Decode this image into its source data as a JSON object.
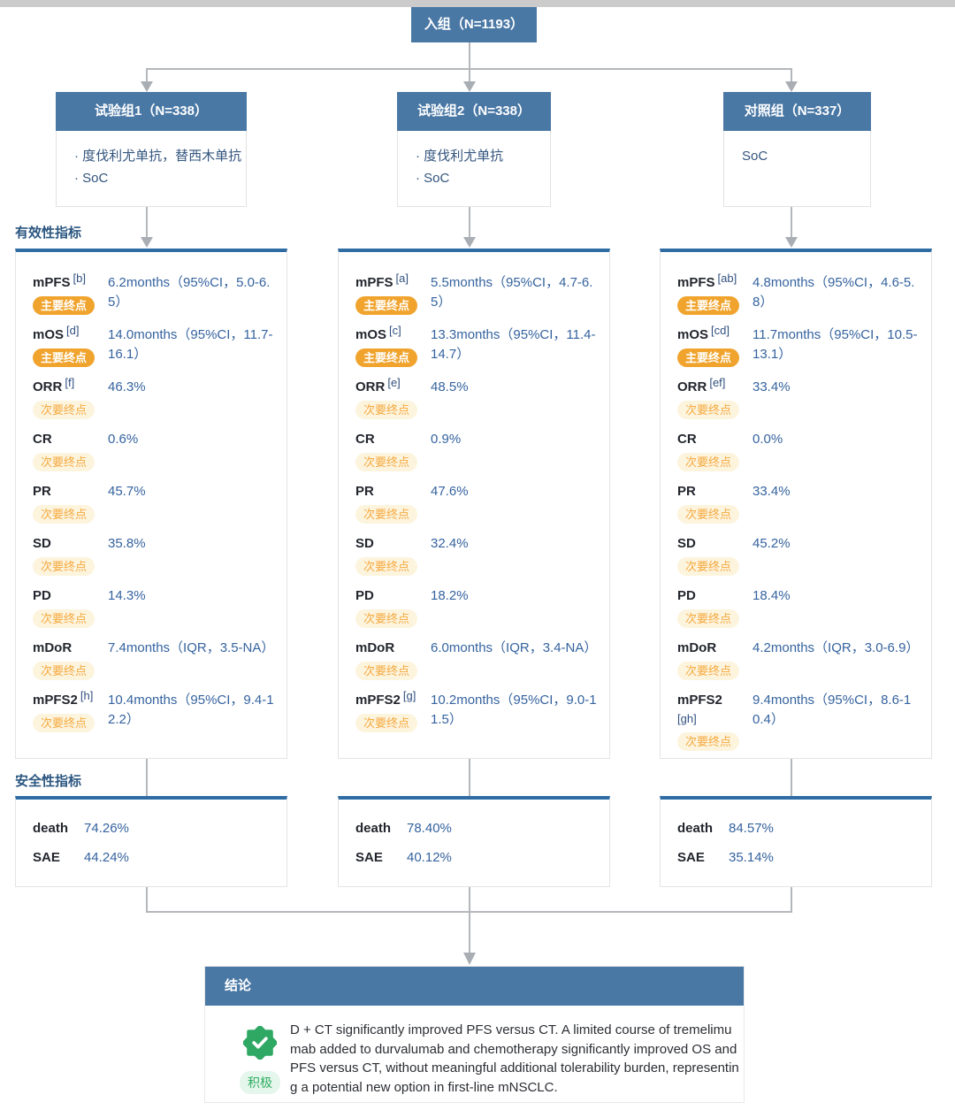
{
  "colors": {
    "blue": "#4a78a5",
    "panelblue": "#2e6ca3",
    "orange": "#f0a42e",
    "orangetext": "#f5a93f",
    "cream": "#fdf4de",
    "valblue": "#35639f",
    "green": "#2fae63",
    "greenbg": "#e5f6ec",
    "line": "#b4b7bb",
    "arrow": "#a9aeb4"
  },
  "enroll": {
    "label": "入组（N=1193）"
  },
  "arms": [
    {
      "header": "试验组1（N=338）",
      "bulleted": true,
      "items": [
        "度伐利尤单抗，替西木单抗",
        "SoC"
      ]
    },
    {
      "header": "试验组2（N=338）",
      "bulleted": true,
      "items": [
        "度伐利尤单抗",
        "SoC"
      ]
    },
    {
      "header": "对照组（N=337）",
      "bulleted": false,
      "items": [
        "SoC"
      ]
    }
  ],
  "sections": {
    "efficacy": "有效性指标",
    "safety": "安全性指标"
  },
  "badges": {
    "primary": "主要终点",
    "secondary": "次要终点"
  },
  "efficacy": {
    "columns": [
      {
        "rows": [
          {
            "metric": "mPFS",
            "sup": "[b]",
            "badge": "primary",
            "value": "6.2months（95%CI，5.0-6.5）"
          },
          {
            "metric": "mOS",
            "sup": "[d]",
            "badge": "primary",
            "value": "14.0months（95%CI，11.7-16.1）"
          },
          {
            "metric": "ORR",
            "sup": "[f]",
            "badge": "secondary",
            "value": "46.3%"
          },
          {
            "metric": "CR",
            "sup": "",
            "badge": "secondary",
            "value": "0.6%"
          },
          {
            "metric": "PR",
            "sup": "",
            "badge": "secondary",
            "value": "45.7%"
          },
          {
            "metric": "SD",
            "sup": "",
            "badge": "secondary",
            "value": "35.8%"
          },
          {
            "metric": "PD",
            "sup": "",
            "badge": "secondary",
            "value": "14.3%"
          },
          {
            "metric": "mDoR",
            "sup": "",
            "badge": "secondary",
            "value": "7.4months（IQR，3.5-NA）"
          },
          {
            "metric": "mPFS2",
            "sup": "[h]",
            "badge": "secondary",
            "value": "10.4months（95%CI，9.4-12.2）"
          }
        ]
      },
      {
        "rows": [
          {
            "metric": "mPFS",
            "sup": "[a]",
            "badge": "primary",
            "value": "5.5months（95%CI，4.7-6.5）"
          },
          {
            "metric": "mOS",
            "sup": "[c]",
            "badge": "primary",
            "value": "13.3months（95%CI，11.4-14.7）"
          },
          {
            "metric": "ORR",
            "sup": "[e]",
            "badge": "secondary",
            "value": "48.5%"
          },
          {
            "metric": "CR",
            "sup": "",
            "badge": "secondary",
            "value": "0.9%"
          },
          {
            "metric": "PR",
            "sup": "",
            "badge": "secondary",
            "value": "47.6%"
          },
          {
            "metric": "SD",
            "sup": "",
            "badge": "secondary",
            "value": "32.4%"
          },
          {
            "metric": "PD",
            "sup": "",
            "badge": "secondary",
            "value": "18.2%"
          },
          {
            "metric": "mDoR",
            "sup": "",
            "badge": "secondary",
            "value": "6.0months（IQR，3.4-NA）"
          },
          {
            "metric": "mPFS2",
            "sup": "[g]",
            "badge": "secondary",
            "value": "10.2months（95%CI，9.0-11.5）"
          }
        ]
      },
      {
        "rows": [
          {
            "metric": "mPFS",
            "sup": "[ab]",
            "badge": "primary",
            "value": "4.8months（95%CI，4.6-5.8）"
          },
          {
            "metric": "mOS",
            "sup": "[cd]",
            "badge": "primary",
            "value": "11.7months（95%CI，10.5-13.1）"
          },
          {
            "metric": "ORR",
            "sup": "[ef]",
            "badge": "secondary",
            "value": "33.4%"
          },
          {
            "metric": "CR",
            "sup": "",
            "badge": "secondary",
            "value": "0.0%"
          },
          {
            "metric": "PR",
            "sup": "",
            "badge": "secondary",
            "value": "33.4%"
          },
          {
            "metric": "SD",
            "sup": "",
            "badge": "secondary",
            "value": "45.2%"
          },
          {
            "metric": "PD",
            "sup": "",
            "badge": "secondary",
            "value": "18.4%"
          },
          {
            "metric": "mDoR",
            "sup": "",
            "badge": "secondary",
            "value": "4.2months（IQR，3.0-6.9）"
          },
          {
            "metric": "mPFS2",
            "sup": "[gh]",
            "sup_break": true,
            "badge": "secondary",
            "value": "9.4months（95%CI，8.6-10.4）"
          }
        ]
      }
    ]
  },
  "safety": {
    "columns": [
      {
        "rows": [
          {
            "metric": "death",
            "value": "74.26%"
          },
          {
            "metric": "SAE",
            "value": "44.24%"
          }
        ]
      },
      {
        "rows": [
          {
            "metric": "death",
            "value": "78.40%"
          },
          {
            "metric": "SAE",
            "value": "40.12%"
          }
        ]
      },
      {
        "rows": [
          {
            "metric": "death",
            "value": "84.57%"
          },
          {
            "metric": "SAE",
            "value": "35.14%"
          }
        ]
      }
    ]
  },
  "conclusion": {
    "title": "结论",
    "sentiment": "积极",
    "text": "D + CT significantly improved PFS versus CT. A limited course of tremelimumab added to durvalumab and chemotherapy significantly improved OS and PFS versus CT, without meaningful additional tolerability burden, representing a potential new option in first-line mNSCLC."
  }
}
